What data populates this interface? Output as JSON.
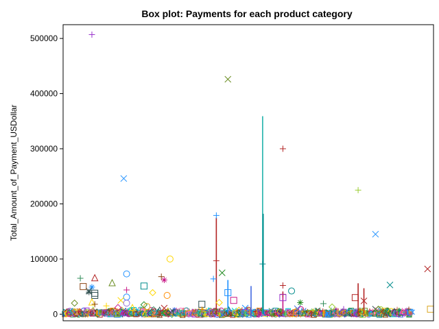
{
  "chart_data": {
    "type": "box",
    "title": "Box plot: Payments for each product category",
    "xlabel": "",
    "ylabel": "Total_Amount_of_Payment_USDollar",
    "ylim": [
      -12000,
      525000
    ],
    "yticks": [
      0,
      100000,
      200000,
      300000,
      400000,
      500000
    ],
    "ytick_labels": [
      "0",
      "100000",
      "200000",
      "300000",
      "400000",
      "500000"
    ],
    "xticks_shown": false,
    "legend": "none",
    "categories_count": 120,
    "category_colors": [
      "#2e8b57",
      "#b22222",
      "#1e90ff",
      "#6b8e23",
      "#8b4513",
      "#9932cc",
      "#008b8b",
      "#daa520",
      "#c71585",
      "#4169e1",
      "#228b22",
      "#ff8c00",
      "#2f4f4f",
      "#20b2aa",
      "#9acd32",
      "#cd5c5c"
    ],
    "whiskers": [
      {
        "x": 52,
        "low": 0,
        "high": 175000,
        "color": "#b22222"
      },
      {
        "x": 68,
        "low": 0,
        "high": 359000,
        "color": "#20b2aa"
      },
      {
        "x": 68.2,
        "low": 0,
        "high": 182000,
        "color": "#008b8b"
      },
      {
        "x": 56,
        "low": 0,
        "high": 62000,
        "color": "#1e90ff"
      },
      {
        "x": 64,
        "low": 0,
        "high": 51000,
        "color": "#4169e1"
      },
      {
        "x": 101,
        "low": 0,
        "high": 56000,
        "color": "#b22222"
      },
      {
        "x": 103,
        "low": 0,
        "high": 47000,
        "color": "#b22222"
      },
      {
        "x": 75,
        "low": 0,
        "high": 40000,
        "color": "#c71585"
      }
    ],
    "outliers": [
      {
        "x": 9,
        "y": 507000,
        "marker": "plus",
        "color": "#9932cc"
      },
      {
        "x": 56,
        "y": 426000,
        "marker": "x",
        "color": "#6b8e23"
      },
      {
        "x": 75,
        "y": 300000,
        "marker": "plus",
        "color": "#b22222"
      },
      {
        "x": 20,
        "y": 246000,
        "marker": "x",
        "color": "#1e90ff"
      },
      {
        "x": 101,
        "y": 225000,
        "marker": "plus",
        "color": "#9acd32"
      },
      {
        "x": 52,
        "y": 179000,
        "marker": "plus",
        "color": "#1e90ff"
      },
      {
        "x": 107,
        "y": 145000,
        "marker": "x",
        "color": "#1e90ff"
      },
      {
        "x": 36,
        "y": 100000,
        "marker": "circle",
        "color": "#ffd700"
      },
      {
        "x": 52,
        "y": 97000,
        "marker": "plus",
        "color": "#b22222"
      },
      {
        "x": 68,
        "y": 91000,
        "marker": "plus",
        "color": "#008b8b"
      },
      {
        "x": 125,
        "y": 82000,
        "marker": "x",
        "color": "#b22222"
      },
      {
        "x": 54,
        "y": 75000,
        "marker": "x",
        "color": "#228b22"
      },
      {
        "x": 21,
        "y": 73000,
        "marker": "circle",
        "color": "#1e90ff"
      },
      {
        "x": 33,
        "y": 68000,
        "marker": "plus",
        "color": "#8b4513"
      },
      {
        "x": 10,
        "y": 66000,
        "marker": "triangle",
        "color": "#b22222"
      },
      {
        "x": 5,
        "y": 65000,
        "marker": "plus",
        "color": "#2e8b57"
      },
      {
        "x": 51,
        "y": 64000,
        "marker": "plus",
        "color": "#1e90ff"
      },
      {
        "x": 34,
        "y": 62000,
        "marker": "star",
        "color": "#c71585"
      },
      {
        "x": 16,
        "y": 57000,
        "marker": "triangle",
        "color": "#6b8e23"
      },
      {
        "x": 112,
        "y": 53000,
        "marker": "x",
        "color": "#008b8b"
      },
      {
        "x": 75,
        "y": 52000,
        "marker": "plus",
        "color": "#b22222"
      },
      {
        "x": 6,
        "y": 50000,
        "marker": "square",
        "color": "#8b4513"
      },
      {
        "x": 27,
        "y": 51000,
        "marker": "square",
        "color": "#008b8b"
      },
      {
        "x": 9,
        "y": 49000,
        "marker": "star",
        "color": "#1e90ff"
      },
      {
        "x": 21,
        "y": 44000,
        "marker": "plus",
        "color": "#c71585"
      },
      {
        "x": 8,
        "y": 42000,
        "marker": "x",
        "color": "#2f4f4f"
      },
      {
        "x": 78,
        "y": 42000,
        "marker": "circle",
        "color": "#008b8b"
      },
      {
        "x": 56,
        "y": 39000,
        "marker": "square",
        "color": "#1e90ff"
      },
      {
        "x": 10,
        "y": 38000,
        "marker": "square",
        "color": "#2f4f4f"
      },
      {
        "x": 30,
        "y": 39000,
        "marker": "diamond",
        "color": "#ffd700"
      },
      {
        "x": 8,
        "y": 40000,
        "marker": "star",
        "color": "#2f4f4f"
      },
      {
        "x": 75,
        "y": 36000,
        "marker": "plus",
        "color": "#b22222"
      },
      {
        "x": 10,
        "y": 34000,
        "marker": "square",
        "color": "#2f4f4f"
      },
      {
        "x": 35,
        "y": 34000,
        "marker": "circle",
        "color": "#ff8c00"
      },
      {
        "x": 21,
        "y": 31000,
        "marker": "circle",
        "color": "#1e90ff"
      },
      {
        "x": 75,
        "y": 30000,
        "marker": "square",
        "color": "#9932cc"
      },
      {
        "x": 100,
        "y": 30000,
        "marker": "square",
        "color": "#b22222"
      },
      {
        "x": 58,
        "y": 25000,
        "marker": "square",
        "color": "#c71585"
      },
      {
        "x": 19,
        "y": 25000,
        "marker": "x",
        "color": "#ffd700"
      },
      {
        "x": 103,
        "y": 24000,
        "marker": "x",
        "color": "#b22222"
      },
      {
        "x": 81,
        "y": 21000,
        "marker": "star",
        "color": "#228b22"
      },
      {
        "x": 53,
        "y": 21000,
        "marker": "diamond",
        "color": "#ffd700"
      },
      {
        "x": 21,
        "y": 20000,
        "marker": "circle",
        "color": "#9370db"
      },
      {
        "x": 3,
        "y": 20000,
        "marker": "diamond",
        "color": "#6b8e23"
      },
      {
        "x": 89,
        "y": 19000,
        "marker": "plus",
        "color": "#2e8b57"
      },
      {
        "x": 47,
        "y": 18000,
        "marker": "square",
        "color": "#2f4f4f"
      },
      {
        "x": 9,
        "y": 22000,
        "marker": "triangle",
        "color": "#ffd700"
      },
      {
        "x": 10,
        "y": 18000,
        "marker": "plus",
        "color": "#8b4513"
      },
      {
        "x": 27,
        "y": 17000,
        "marker": "diamond",
        "color": "#228b22"
      },
      {
        "x": 14,
        "y": 15000,
        "marker": "plus",
        "color": "#ffd700"
      },
      {
        "x": 28,
        "y": 14000,
        "marker": "circle",
        "color": "#daa520"
      },
      {
        "x": 92,
        "y": 13000,
        "marker": "diamond",
        "color": "#9acd32"
      },
      {
        "x": 18,
        "y": 12000,
        "marker": "diamond",
        "color": "#c71585"
      },
      {
        "x": 23,
        "y": 12000,
        "marker": "triangle",
        "color": "#ffd700"
      },
      {
        "x": 62,
        "y": 11000,
        "marker": "x",
        "color": "#1e90ff"
      },
      {
        "x": 34,
        "y": 11000,
        "marker": "x",
        "color": "#b22222"
      },
      {
        "x": 107,
        "y": 9000,
        "marker": "x",
        "color": "#2f4f4f"
      },
      {
        "x": 108,
        "y": 9000,
        "marker": "diamond",
        "color": "#6b8e23"
      },
      {
        "x": 126,
        "y": 9000,
        "marker": "square",
        "color": "#daa520"
      },
      {
        "x": 96,
        "y": 9000,
        "marker": "plus",
        "color": "#9932cc"
      },
      {
        "x": 47,
        "y": 8000,
        "marker": "plus",
        "color": "#ff8c00"
      },
      {
        "x": 80,
        "y": 10000,
        "marker": "x",
        "color": "#4169e1"
      }
    ]
  }
}
